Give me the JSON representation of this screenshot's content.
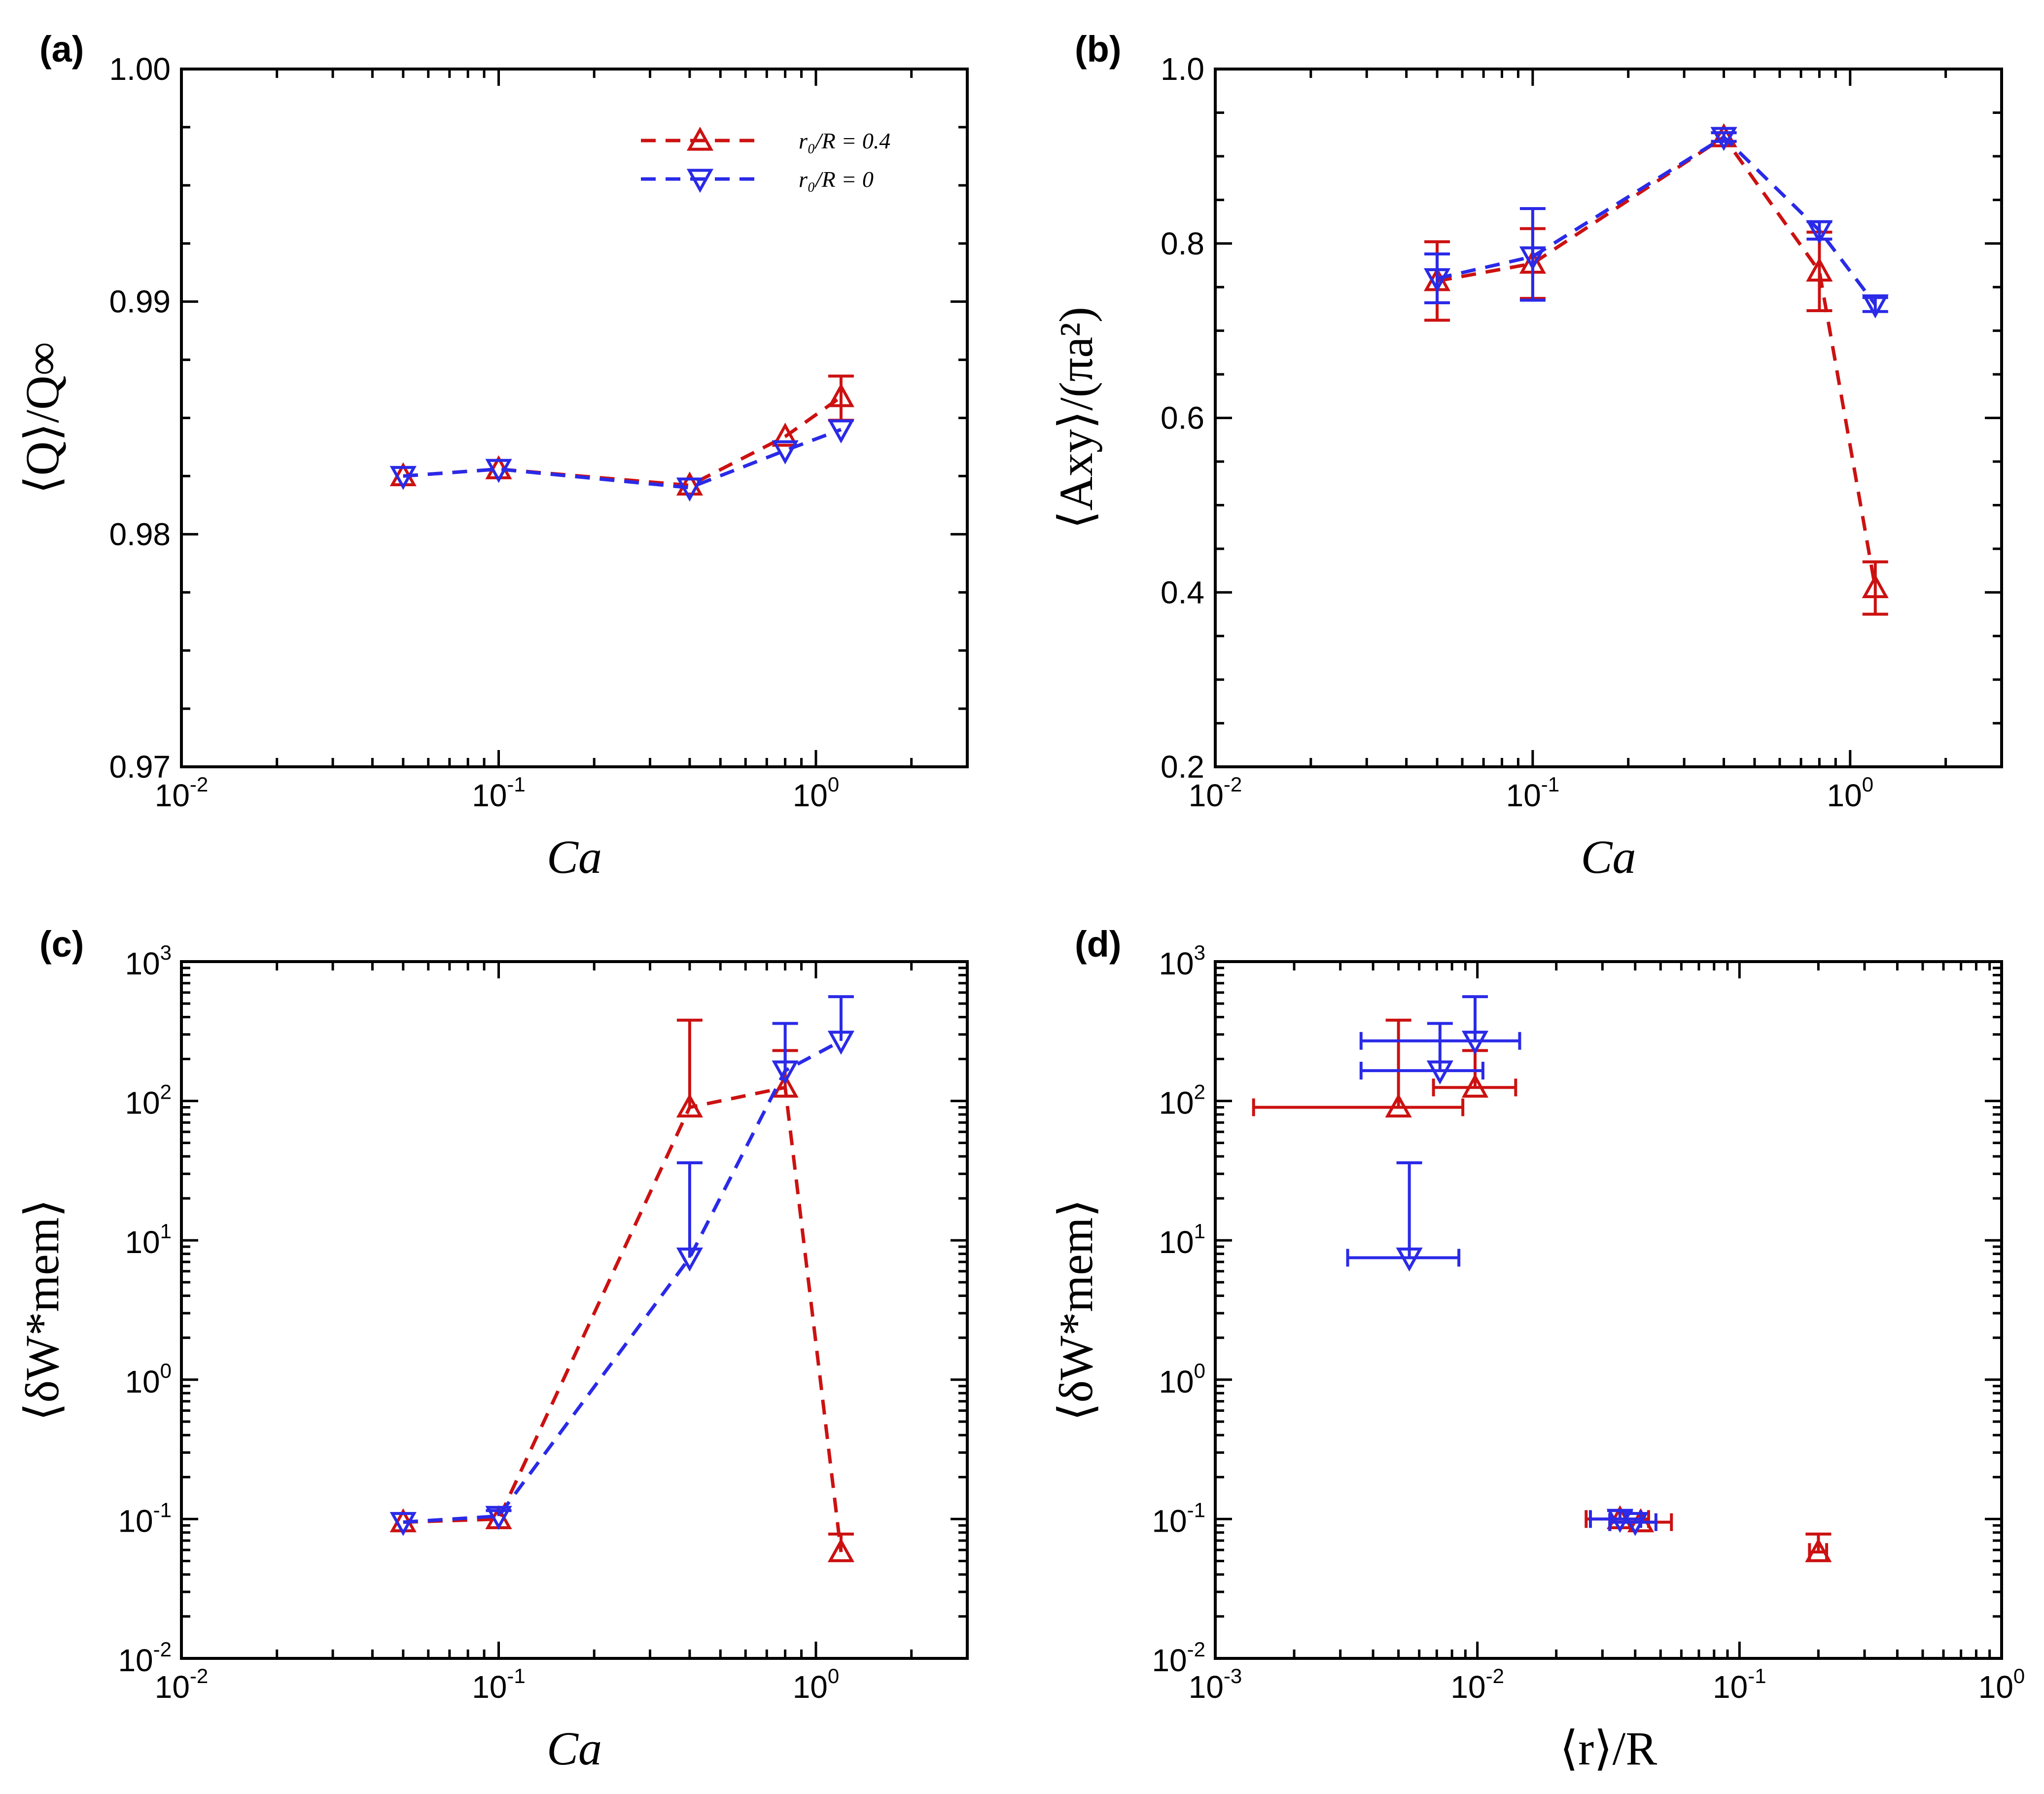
{
  "colors": {
    "red": "#cc1111",
    "blue": "#2a2ae8"
  },
  "legend": {
    "entries": [
      {
        "label": "r₀/R = 0.4",
        "marker": "triangle-up",
        "series": "red"
      },
      {
        "label": "r₀/R = 0",
        "marker": "triangle-down",
        "series": "blue"
      }
    ]
  },
  "chart_data": [
    {
      "id": "a",
      "panel_label": "(a)",
      "type": "line",
      "xscale": "log",
      "xlim": [
        0.01,
        3
      ],
      "ylim": [
        0.97,
        1.0
      ],
      "xlabel": "Ca",
      "ylabel": "⟨Q⟩/Q∞",
      "xticks": [
        {
          "base": "10",
          "exp": "-2"
        },
        {
          "base": "10",
          "exp": "-1"
        },
        {
          "base": "10",
          "exp": "0"
        }
      ],
      "yticks": [
        "0.97",
        "0.98",
        "0.99",
        "1.00"
      ],
      "yticks_values": [
        0.97,
        0.98,
        0.99,
        1.0
      ],
      "legend_position": "top-right",
      "series": [
        {
          "name": "r₀/R = 0.4",
          "color": "red",
          "marker": "triangle-up",
          "x": [
            0.05,
            0.1,
            0.4,
            0.8,
            1.2
          ],
          "y": [
            0.9825,
            0.9828,
            0.9821,
            0.9842,
            0.9859
          ],
          "yerr_low": [
            0,
            0,
            0,
            0,
            0.001
          ],
          "yerr_high": [
            0,
            0,
            0,
            0,
            0.0009
          ]
        },
        {
          "name": "r₀/R = 0",
          "color": "blue",
          "marker": "triangle-down",
          "x": [
            0.05,
            0.1,
            0.4,
            0.8,
            1.2
          ],
          "y": [
            0.9825,
            0.9828,
            0.982,
            0.9836,
            0.9845
          ],
          "yerr_low": [
            0,
            0,
            0,
            0,
            0
          ],
          "yerr_high": [
            0,
            0,
            0,
            0,
            0
          ]
        }
      ]
    },
    {
      "id": "b",
      "panel_label": "(b)",
      "type": "line",
      "xscale": "log",
      "xlim": [
        0.01,
        3
      ],
      "ylim": [
        0.2,
        1.0
      ],
      "xlabel": "Ca",
      "ylabel": "⟨Axy⟩/(πa²)",
      "xticks": [
        {
          "base": "10",
          "exp": "-2"
        },
        {
          "base": "10",
          "exp": "-1"
        },
        {
          "base": "10",
          "exp": "0"
        }
      ],
      "yticks": [
        "0.2",
        "0.4",
        "0.6",
        "0.8",
        "1.0"
      ],
      "yticks_values": [
        0.2,
        0.4,
        0.6,
        0.8,
        1.0
      ],
      "series": [
        {
          "name": "r₀/R = 0.4",
          "color": "red",
          "marker": "triangle-up",
          "x": [
            0.05,
            0.1,
            0.4,
            0.8,
            1.2
          ],
          "y": [
            0.757,
            0.777,
            0.922,
            0.768,
            0.405
          ],
          "yerr_low": [
            0.045,
            0.04,
            0.005,
            0.045,
            0.03
          ],
          "yerr_high": [
            0.045,
            0.04,
            0.005,
            0.045,
            0.03
          ]
        },
        {
          "name": "r₀/R = 0",
          "color": "blue",
          "marker": "triangle-down",
          "x": [
            0.05,
            0.1,
            0.4,
            0.8,
            1.2
          ],
          "y": [
            0.76,
            0.785,
            0.922,
            0.815,
            0.73
          ],
          "yerr_low": [
            0.028,
            0.05,
            0.005,
            0.01,
            0.008
          ],
          "yerr_high": [
            0.028,
            0.055,
            0.005,
            0.01,
            0.008
          ]
        }
      ]
    },
    {
      "id": "c",
      "panel_label": "(c)",
      "type": "line",
      "xscale": "log",
      "yscale": "log",
      "xlim": [
        0.01,
        3
      ],
      "ylim": [
        0.01,
        1000
      ],
      "xlabel": "Ca",
      "ylabel": "⟨δW*mem⟩",
      "xticks": [
        {
          "base": "10",
          "exp": "-2"
        },
        {
          "base": "10",
          "exp": "-1"
        },
        {
          "base": "10",
          "exp": "0"
        }
      ],
      "yticks": [
        {
          "base": "10",
          "exp": "-2"
        },
        {
          "base": "10",
          "exp": "-1"
        },
        {
          "base": "10",
          "exp": "0"
        },
        {
          "base": "10",
          "exp": "1"
        },
        {
          "base": "10",
          "exp": "2"
        },
        {
          "base": "10",
          "exp": "3"
        }
      ],
      "series": [
        {
          "name": "r₀/R = 0.4",
          "color": "red",
          "marker": "triangle-up",
          "x": [
            0.05,
            0.1,
            0.4,
            0.8,
            1.2
          ],
          "y": [
            0.095,
            0.1,
            90,
            125,
            0.058
          ],
          "yerr_high_value": [
            null,
            null,
            380,
            230,
            0.078
          ]
        },
        {
          "name": "r₀/R = 0",
          "color": "blue",
          "marker": "triangle-down",
          "x": [
            0.05,
            0.1,
            0.4,
            0.8,
            1.2
          ],
          "y": [
            0.095,
            0.105,
            7.5,
            165,
            270
          ],
          "yerr_high_value": [
            null,
            0.115,
            36,
            360,
            560
          ]
        }
      ]
    },
    {
      "id": "d",
      "panel_label": "(d)",
      "type": "scatter",
      "xscale": "log",
      "yscale": "log",
      "xlim": [
        0.001,
        1
      ],
      "ylim": [
        0.01,
        1000
      ],
      "xlabel": "⟨r⟩/R",
      "ylabel": "⟨δW*mem⟩",
      "xticks": [
        {
          "base": "10",
          "exp": "-3"
        },
        {
          "base": "10",
          "exp": "-2"
        },
        {
          "base": "10",
          "exp": "-1"
        },
        {
          "base": "10",
          "exp": "0"
        }
      ],
      "yticks": [
        {
          "base": "10",
          "exp": "-2"
        },
        {
          "base": "10",
          "exp": "-1"
        },
        {
          "base": "10",
          "exp": "0"
        },
        {
          "base": "10",
          "exp": "1"
        },
        {
          "base": "10",
          "exp": "2"
        },
        {
          "base": "10",
          "exp": "3"
        }
      ],
      "series": [
        {
          "name": "r₀/R = 0.4",
          "color": "red",
          "marker": "triangle-up",
          "x": [
            0.035,
            0.042,
            0.005,
            0.0098,
            0.2
          ],
          "y": [
            0.1,
            0.095,
            90,
            125,
            0.058
          ],
          "xerr_range": [
            [
              0.026,
              0.045
            ],
            [
              0.032,
              0.055
            ],
            [
              0.0014,
              0.0088
            ],
            [
              0.0068,
              0.014
            ],
            [
              0.185,
              0.215
            ]
          ],
          "yerr_high_value": [
            null,
            null,
            380,
            230,
            0.078
          ]
        },
        {
          "name": "r₀/R = 0",
          "color": "blue",
          "marker": "triangle-down",
          "x": [
            0.035,
            0.04,
            0.0055,
            0.0072,
            0.0098
          ],
          "y": [
            0.1,
            0.095,
            7.5,
            165,
            270
          ],
          "xerr_range": [
            [
              0.027,
              0.042
            ],
            [
              0.032,
              0.048
            ],
            [
              0.0032,
              0.0085
            ],
            [
              0.0036,
              0.0105
            ],
            [
              0.0036,
              0.0145
            ]
          ],
          "yerr_high_value": [
            0.115,
            null,
            36,
            360,
            560
          ]
        }
      ]
    }
  ]
}
